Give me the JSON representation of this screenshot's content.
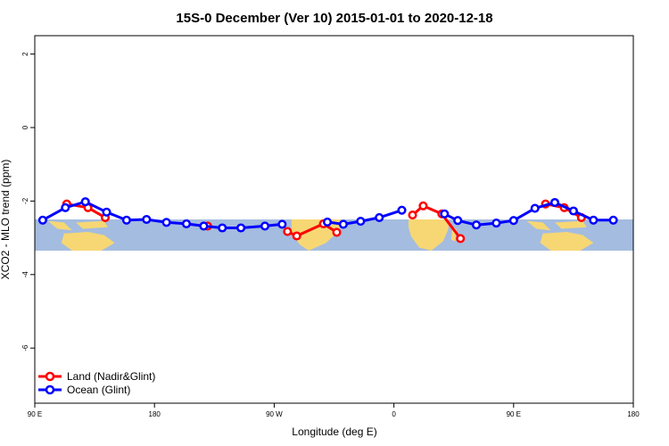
{
  "chart_data": {
    "type": "line",
    "title": "15S-0 December (Ver 10)   2015-01-01 to 2020-12-18",
    "xlabel": "Longitude (deg E)",
    "ylabel": "XCO2 - MLO trend (ppm)",
    "xlim": [
      90,
      540
    ],
    "ylim": [
      -7.5,
      2.5
    ],
    "x_ticks": [
      {
        "value": 90,
        "label": "90 E"
      },
      {
        "value": 180,
        "label": "180"
      },
      {
        "value": 270,
        "label": "90 W"
      },
      {
        "value": 360,
        "label": "0"
      },
      {
        "value": 450,
        "label": "90 E"
      },
      {
        "value": 540,
        "label": "180"
      }
    ],
    "y_ticks": [
      {
        "value": 2,
        "label": "2"
      },
      {
        "value": 0,
        "label": "0"
      },
      {
        "value": -2,
        "label": "-2"
      },
      {
        "value": -4,
        "label": "-4"
      },
      {
        "value": -6,
        "label": "-6"
      }
    ],
    "map_band": {
      "ymin": -3.35,
      "ymax": -2.5
    },
    "legend_position": "bottom-left",
    "series": [
      {
        "name": "Land (Nadir&Glint)",
        "color": "#ff0000",
        "segments": [
          [
            [
              114,
              -2.08
            ],
            [
              130,
              -2.18
            ],
            [
              143,
              -2.45
            ]
          ],
          [
            [
              220,
              -2.68
            ]
          ],
          [
            [
              280,
              -2.83
            ],
            [
              287,
              -2.95
            ],
            [
              307,
              -2.62
            ],
            [
              317,
              -2.85
            ]
          ],
          [
            [
              374,
              -2.38
            ],
            [
              382,
              -2.13
            ],
            [
              396,
              -2.35
            ],
            [
              410,
              -3.02
            ]
          ],
          [
            [
              474,
              -2.08
            ],
            [
              488,
              -2.18
            ],
            [
              501,
              -2.45
            ]
          ]
        ]
      },
      {
        "name": "Ocean (Glint)",
        "color": "#0000ff",
        "segments": [
          [
            [
              96,
              -2.52
            ],
            [
              113,
              -2.18
            ],
            [
              128,
              -2.02
            ],
            [
              144,
              -2.3
            ],
            [
              159,
              -2.52
            ],
            [
              174,
              -2.5
            ],
            [
              189,
              -2.58
            ],
            [
              204,
              -2.62
            ],
            [
              217,
              -2.68
            ],
            [
              231,
              -2.73
            ],
            [
              245,
              -2.73
            ],
            [
              263,
              -2.68
            ],
            [
              276,
              -2.63
            ]
          ],
          [
            [
              310,
              -2.57
            ],
            [
              322,
              -2.63
            ],
            [
              335,
              -2.55
            ],
            [
              349,
              -2.45
            ],
            [
              366,
              -2.25
            ]
          ],
          [
            [
              398,
              -2.35
            ],
            [
              408,
              -2.53
            ],
            [
              422,
              -2.65
            ],
            [
              437,
              -2.6
            ],
            [
              450,
              -2.53
            ],
            [
              466,
              -2.2
            ],
            [
              481,
              -2.04
            ],
            [
              495,
              -2.27
            ],
            [
              510,
              -2.52
            ],
            [
              525,
              -2.52
            ]
          ]
        ]
      }
    ]
  }
}
